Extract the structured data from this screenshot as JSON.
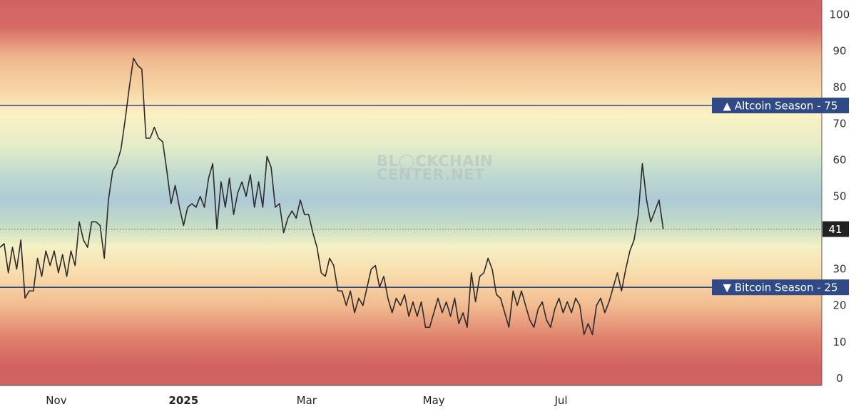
{
  "chart_data": {
    "type": "line",
    "title": "",
    "xlabel": "",
    "ylabel": "",
    "ylim": [
      -2,
      104
    ],
    "y_ticks": [
      0,
      10,
      20,
      30,
      40,
      50,
      60,
      70,
      80,
      90,
      100
    ],
    "x_tick_labels": [
      {
        "label": "Nov",
        "date": "2024-11-01",
        "bold": false
      },
      {
        "label": "2025",
        "date": "2025-01-01",
        "bold": true
      },
      {
        "label": "Mar",
        "date": "2025-03-01",
        "bold": false
      },
      {
        "label": "May",
        "date": "2025-05-01",
        "bold": false
      },
      {
        "label": "Jul",
        "date": "2025-07-01",
        "bold": false
      }
    ],
    "x_range": [
      "2024-10-05",
      "2025-11-03"
    ],
    "grid": false,
    "background": "gradient bands: red (top/bottom), yellow, green, blue (middle)",
    "series": [
      {
        "color": "#2b2b2b",
        "points": [
          [
            "2024-10-05",
            36
          ],
          [
            "2024-10-07",
            37
          ],
          [
            "2024-10-09",
            29
          ],
          [
            "2024-10-11",
            36
          ],
          [
            "2024-10-13",
            30
          ],
          [
            "2024-10-15",
            38
          ],
          [
            "2024-10-17",
            22
          ],
          [
            "2024-10-19",
            24
          ],
          [
            "2024-10-21",
            24
          ],
          [
            "2024-10-23",
            33
          ],
          [
            "2024-10-25",
            28
          ],
          [
            "2024-10-27",
            35
          ],
          [
            "2024-10-29",
            31
          ],
          [
            "2024-10-31",
            35
          ],
          [
            "2024-11-02",
            29
          ],
          [
            "2024-11-04",
            34
          ],
          [
            "2024-11-06",
            28
          ],
          [
            "2024-11-08",
            35
          ],
          [
            "2024-11-10",
            31
          ],
          [
            "2024-11-12",
            43
          ],
          [
            "2024-11-14",
            38
          ],
          [
            "2024-11-16",
            36
          ],
          [
            "2024-11-18",
            43
          ],
          [
            "2024-11-20",
            43
          ],
          [
            "2024-11-22",
            42
          ],
          [
            "2024-11-24",
            33
          ],
          [
            "2024-11-26",
            49
          ],
          [
            "2024-11-28",
            57
          ],
          [
            "2024-11-30",
            59
          ],
          [
            "2024-12-02",
            63
          ],
          [
            "2024-12-04",
            71
          ],
          [
            "2024-12-06",
            80
          ],
          [
            "2024-12-08",
            88
          ],
          [
            "2024-12-10",
            86
          ],
          [
            "2024-12-12",
            85
          ],
          [
            "2024-12-14",
            66
          ],
          [
            "2024-12-16",
            66
          ],
          [
            "2024-12-18",
            69
          ],
          [
            "2024-12-20",
            66
          ],
          [
            "2024-12-22",
            65
          ],
          [
            "2024-12-24",
            57
          ],
          [
            "2024-12-26",
            48
          ],
          [
            "2024-12-28",
            53
          ],
          [
            "2024-12-30",
            47
          ],
          [
            "2025-01-01",
            42
          ],
          [
            "2025-01-03",
            47
          ],
          [
            "2025-01-05",
            48
          ],
          [
            "2025-01-07",
            47
          ],
          [
            "2025-01-09",
            50
          ],
          [
            "2025-01-11",
            47
          ],
          [
            "2025-01-13",
            55
          ],
          [
            "2025-01-15",
            59
          ],
          [
            "2025-01-17",
            41
          ],
          [
            "2025-01-19",
            54
          ],
          [
            "2025-01-21",
            47
          ],
          [
            "2025-01-23",
            55
          ],
          [
            "2025-01-25",
            45
          ],
          [
            "2025-01-27",
            51
          ],
          [
            "2025-01-29",
            54
          ],
          [
            "2025-01-31",
            50
          ],
          [
            "2025-02-02",
            56
          ],
          [
            "2025-02-04",
            47
          ],
          [
            "2025-02-06",
            54
          ],
          [
            "2025-02-08",
            47
          ],
          [
            "2025-02-10",
            61
          ],
          [
            "2025-02-12",
            58
          ],
          [
            "2025-02-14",
            47
          ],
          [
            "2025-02-16",
            48
          ],
          [
            "2025-02-18",
            40
          ],
          [
            "2025-02-20",
            44
          ],
          [
            "2025-02-22",
            46
          ],
          [
            "2025-02-24",
            44
          ],
          [
            "2025-02-26",
            49
          ],
          [
            "2025-02-28",
            45
          ],
          [
            "2025-03-02",
            45
          ],
          [
            "2025-03-04",
            40
          ],
          [
            "2025-03-06",
            36
          ],
          [
            "2025-03-08",
            29
          ],
          [
            "2025-03-10",
            28
          ],
          [
            "2025-03-12",
            33
          ],
          [
            "2025-03-14",
            31
          ],
          [
            "2025-03-16",
            24
          ],
          [
            "2025-03-18",
            24
          ],
          [
            "2025-03-20",
            20
          ],
          [
            "2025-03-22",
            24
          ],
          [
            "2025-03-24",
            18
          ],
          [
            "2025-03-26",
            22
          ],
          [
            "2025-03-28",
            20
          ],
          [
            "2025-03-30",
            25
          ],
          [
            "2025-04-01",
            30
          ],
          [
            "2025-04-03",
            31
          ],
          [
            "2025-04-05",
            25
          ],
          [
            "2025-04-07",
            28
          ],
          [
            "2025-04-09",
            22
          ],
          [
            "2025-04-11",
            18
          ],
          [
            "2025-04-13",
            22
          ],
          [
            "2025-04-15",
            20
          ],
          [
            "2025-04-17",
            23
          ],
          [
            "2025-04-19",
            17
          ],
          [
            "2025-04-21",
            21
          ],
          [
            "2025-04-23",
            17
          ],
          [
            "2025-04-25",
            21
          ],
          [
            "2025-04-27",
            14
          ],
          [
            "2025-04-29",
            14
          ],
          [
            "2025-05-01",
            18
          ],
          [
            "2025-05-03",
            22
          ],
          [
            "2025-05-05",
            18
          ],
          [
            "2025-05-07",
            21
          ],
          [
            "2025-05-09",
            17
          ],
          [
            "2025-05-11",
            22
          ],
          [
            "2025-05-13",
            15
          ],
          [
            "2025-05-15",
            18
          ],
          [
            "2025-05-17",
            14
          ],
          [
            "2025-05-19",
            29
          ],
          [
            "2025-05-21",
            21
          ],
          [
            "2025-05-23",
            28
          ],
          [
            "2025-05-25",
            29
          ],
          [
            "2025-05-27",
            33
          ],
          [
            "2025-05-29",
            30
          ],
          [
            "2025-05-31",
            23
          ],
          [
            "2025-06-02",
            22
          ],
          [
            "2025-06-04",
            18
          ],
          [
            "2025-06-06",
            14
          ],
          [
            "2025-06-08",
            24
          ],
          [
            "2025-06-10",
            20
          ],
          [
            "2025-06-12",
            24
          ],
          [
            "2025-06-14",
            20
          ],
          [
            "2025-06-16",
            16
          ],
          [
            "2025-06-18",
            14
          ],
          [
            "2025-06-20",
            19
          ],
          [
            "2025-06-22",
            21
          ],
          [
            "2025-06-24",
            16
          ],
          [
            "2025-06-26",
            14
          ],
          [
            "2025-06-28",
            19
          ],
          [
            "2025-06-30",
            22
          ],
          [
            "2025-07-02",
            18
          ],
          [
            "2025-07-04",
            21
          ],
          [
            "2025-07-06",
            18
          ],
          [
            "2025-07-08",
            22
          ],
          [
            "2025-07-10",
            20
          ],
          [
            "2025-07-12",
            12
          ],
          [
            "2025-07-14",
            15
          ],
          [
            "2025-07-16",
            12
          ],
          [
            "2025-07-18",
            20
          ],
          [
            "2025-07-20",
            22
          ],
          [
            "2025-07-22",
            18
          ],
          [
            "2025-07-24",
            21
          ],
          [
            "2025-07-26",
            25
          ],
          [
            "2025-07-28",
            29
          ],
          [
            "2025-07-30",
            24
          ],
          [
            "2025-08-01",
            30
          ],
          [
            "2025-08-03",
            35
          ],
          [
            "2025-08-05",
            38
          ],
          [
            "2025-08-07",
            45
          ],
          [
            "2025-08-09",
            59
          ],
          [
            "2025-08-11",
            49
          ],
          [
            "2025-08-13",
            43
          ],
          [
            "2025-08-15",
            46
          ],
          [
            "2025-08-17",
            49
          ],
          [
            "2025-08-19",
            41
          ]
        ]
      }
    ],
    "threshold_lines": [
      {
        "label": "▲ Altcoin Season - 75",
        "value": 75,
        "color": "#2f4a87"
      },
      {
        "label": "▼ Bitcoin Season - 25",
        "value": 25,
        "color": "#2f4a87"
      }
    ],
    "current_value": {
      "label": "41",
      "value": 41,
      "color": "#222222"
    },
    "watermark": [
      "BL◯CKCHAIN",
      "CENTER.NET"
    ]
  }
}
